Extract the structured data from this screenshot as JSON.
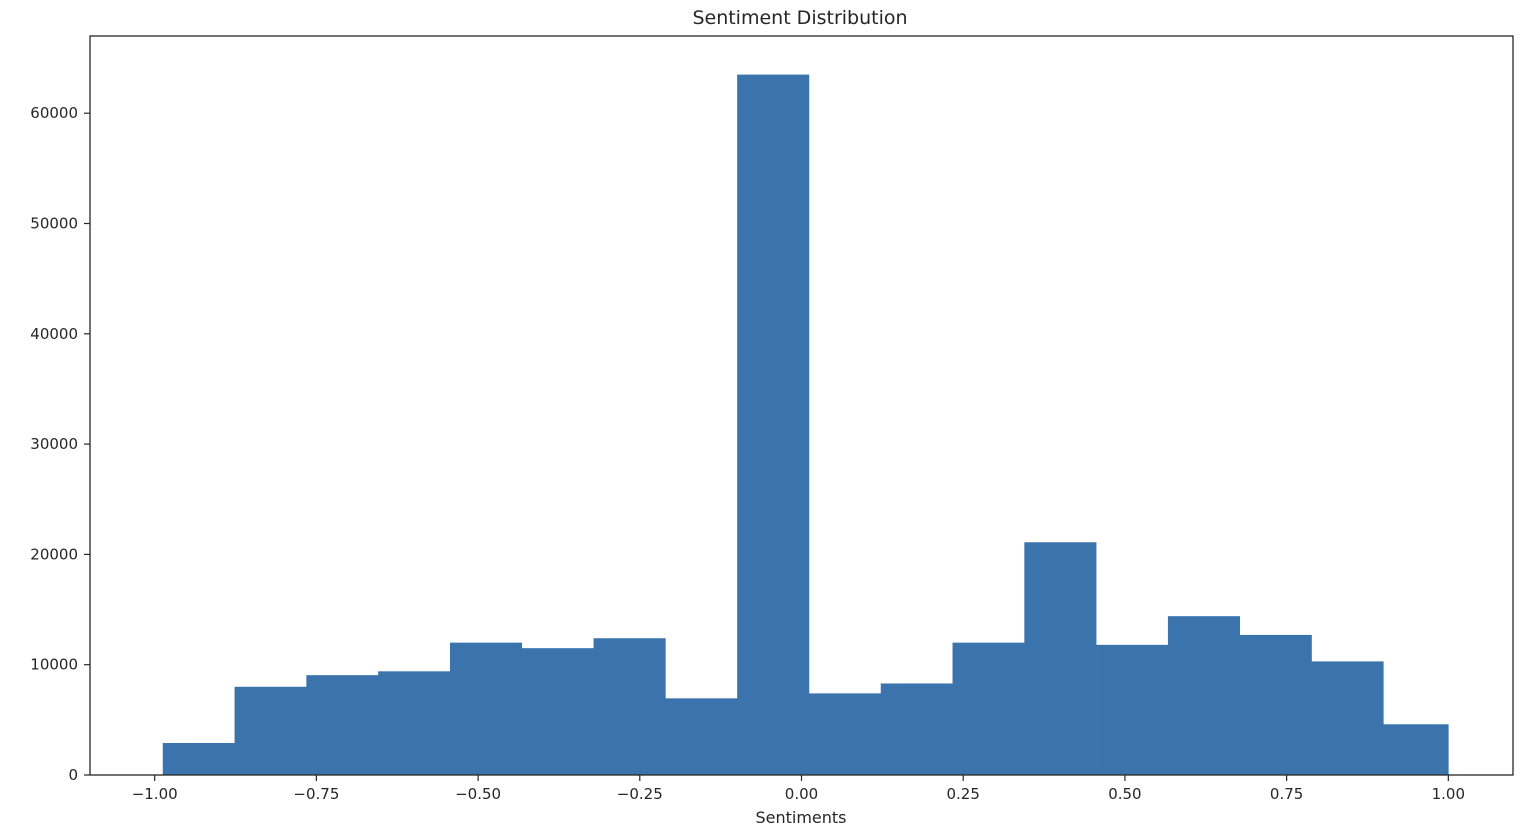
{
  "chart_data": {
    "type": "bar",
    "title": "Sentiment Distribution",
    "xlabel": "Sentiments",
    "ylabel": "",
    "bar_color": "#3b73ad",
    "xlim": [
      -1.1,
      1.1
    ],
    "ylim": [
      0,
      67000
    ],
    "grid": false,
    "bin_edges": [
      -0.9875,
      -0.8765,
      -0.7655,
      -0.6545,
      -0.5435,
      -0.4325,
      -0.3215,
      -0.2105,
      -0.0995,
      0.0115,
      0.1225,
      0.2335,
      0.3445,
      0.4555,
      0.5665,
      0.6775,
      0.7885,
      0.8995,
      1.0
    ],
    "values": [
      2900,
      8000,
      9050,
      9400,
      12000,
      11500,
      12400,
      6950,
      63500,
      7400,
      8300,
      12000,
      21100,
      11800,
      14400,
      12700,
      10300,
      4600
    ],
    "x_ticks": [
      {
        "value": -1.0,
        "label": "−1.00"
      },
      {
        "value": -0.75,
        "label": "−0.75"
      },
      {
        "value": -0.5,
        "label": "−0.50"
      },
      {
        "value": -0.25,
        "label": "−0.25"
      },
      {
        "value": 0.0,
        "label": "0.00"
      },
      {
        "value": 0.25,
        "label": "0.25"
      },
      {
        "value": 0.5,
        "label": "0.50"
      },
      {
        "value": 0.75,
        "label": "0.75"
      },
      {
        "value": 1.0,
        "label": "1.00"
      }
    ],
    "y_ticks": [
      {
        "value": 0,
        "label": "0"
      },
      {
        "value": 10000,
        "label": "10000"
      },
      {
        "value": 20000,
        "label": "20000"
      },
      {
        "value": 30000,
        "label": "30000"
      },
      {
        "value": 40000,
        "label": "40000"
      },
      {
        "value": 50000,
        "label": "50000"
      },
      {
        "value": 60000,
        "label": "60000"
      }
    ]
  }
}
